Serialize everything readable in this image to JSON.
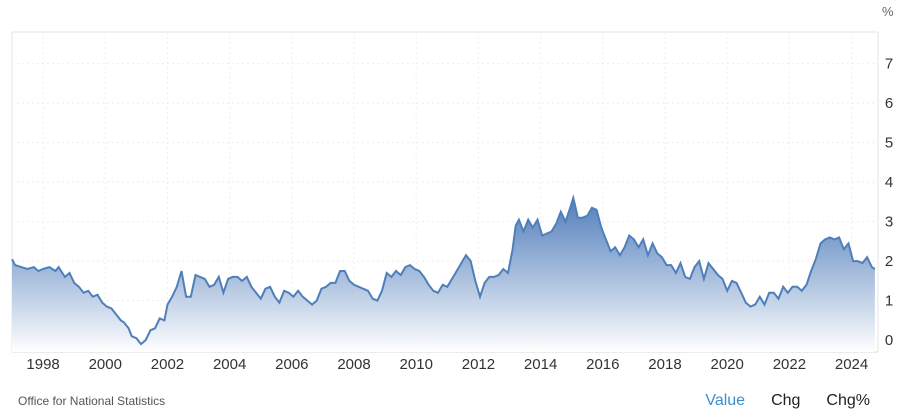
{
  "chart_data": {
    "type": "area",
    "unit": "%",
    "ylim": [
      -0.3,
      7.8
    ],
    "yticks": [
      0,
      1,
      2,
      3,
      4,
      5,
      6,
      7
    ],
    "xlim": [
      1997.0,
      2024.85
    ],
    "xticks": [
      1998,
      2000,
      2002,
      2004,
      2006,
      2008,
      2010,
      2012,
      2014,
      2016,
      2018,
      2020,
      2022,
      2024
    ],
    "grid": true,
    "legend": "none",
    "line_color": "#4f7fba",
    "fill_top_color": "#4a78b8",
    "fill_bottom_color": "#ffffff",
    "points": [
      [
        1997.0,
        2.05
      ],
      [
        1997.1,
        1.9
      ],
      [
        1997.3,
        1.85
      ],
      [
        1997.5,
        1.8
      ],
      [
        1997.7,
        1.85
      ],
      [
        1997.85,
        1.75
      ],
      [
        1998.0,
        1.8
      ],
      [
        1998.2,
        1.85
      ],
      [
        1998.4,
        1.75
      ],
      [
        1998.5,
        1.85
      ],
      [
        1998.7,
        1.6
      ],
      [
        1998.85,
        1.7
      ],
      [
        1999.0,
        1.45
      ],
      [
        1999.15,
        1.35
      ],
      [
        1999.3,
        1.2
      ],
      [
        1999.45,
        1.25
      ],
      [
        1999.6,
        1.1
      ],
      [
        1999.75,
        1.15
      ],
      [
        1999.9,
        0.95
      ],
      [
        2000.05,
        0.85
      ],
      [
        2000.2,
        0.8
      ],
      [
        2000.35,
        0.65
      ],
      [
        2000.5,
        0.5
      ],
      [
        2000.6,
        0.45
      ],
      [
        2000.75,
        0.3
      ],
      [
        2000.85,
        0.1
      ],
      [
        2001.0,
        0.05
      ],
      [
        2001.15,
        -0.1
      ],
      [
        2001.3,
        0.0
      ],
      [
        2001.45,
        0.25
      ],
      [
        2001.6,
        0.3
      ],
      [
        2001.75,
        0.55
      ],
      [
        2001.9,
        0.5
      ],
      [
        2002.0,
        0.9
      ],
      [
        2002.15,
        1.1
      ],
      [
        2002.3,
        1.35
      ],
      [
        2002.45,
        1.75
      ],
      [
        2002.6,
        1.1
      ],
      [
        2002.75,
        1.1
      ],
      [
        2002.9,
        1.65
      ],
      [
        2003.05,
        1.6
      ],
      [
        2003.2,
        1.55
      ],
      [
        2003.35,
        1.35
      ],
      [
        2003.5,
        1.4
      ],
      [
        2003.65,
        1.6
      ],
      [
        2003.8,
        1.2
      ],
      [
        2003.95,
        1.55
      ],
      [
        2004.1,
        1.6
      ],
      [
        2004.25,
        1.6
      ],
      [
        2004.4,
        1.5
      ],
      [
        2004.55,
        1.6
      ],
      [
        2004.7,
        1.35
      ],
      [
        2004.85,
        1.2
      ],
      [
        2005.0,
        1.05
      ],
      [
        2005.15,
        1.3
      ],
      [
        2005.3,
        1.35
      ],
      [
        2005.45,
        1.1
      ],
      [
        2005.6,
        0.95
      ],
      [
        2005.75,
        1.25
      ],
      [
        2005.9,
        1.2
      ],
      [
        2006.05,
        1.1
      ],
      [
        2006.2,
        1.25
      ],
      [
        2006.35,
        1.1
      ],
      [
        2006.5,
        1.0
      ],
      [
        2006.65,
        0.9
      ],
      [
        2006.8,
        1.0
      ],
      [
        2006.95,
        1.3
      ],
      [
        2007.1,
        1.35
      ],
      [
        2007.25,
        1.45
      ],
      [
        2007.4,
        1.45
      ],
      [
        2007.55,
        1.75
      ],
      [
        2007.7,
        1.75
      ],
      [
        2007.85,
        1.5
      ],
      [
        2008.0,
        1.4
      ],
      [
        2008.15,
        1.35
      ],
      [
        2008.3,
        1.3
      ],
      [
        2008.45,
        1.25
      ],
      [
        2008.6,
        1.05
      ],
      [
        2008.75,
        1.0
      ],
      [
        2008.9,
        1.25
      ],
      [
        2009.05,
        1.7
      ],
      [
        2009.2,
        1.6
      ],
      [
        2009.35,
        1.75
      ],
      [
        2009.5,
        1.65
      ],
      [
        2009.65,
        1.85
      ],
      [
        2009.8,
        1.9
      ],
      [
        2009.95,
        1.8
      ],
      [
        2010.1,
        1.75
      ],
      [
        2010.25,
        1.6
      ],
      [
        2010.4,
        1.4
      ],
      [
        2010.55,
        1.25
      ],
      [
        2010.7,
        1.2
      ],
      [
        2010.85,
        1.4
      ],
      [
        2011.0,
        1.35
      ],
      [
        2011.15,
        1.55
      ],
      [
        2011.3,
        1.75
      ],
      [
        2011.45,
        1.95
      ],
      [
        2011.6,
        2.15
      ],
      [
        2011.75,
        2.0
      ],
      [
        2011.9,
        1.5
      ],
      [
        2012.05,
        1.1
      ],
      [
        2012.2,
        1.45
      ],
      [
        2012.35,
        1.6
      ],
      [
        2012.5,
        1.6
      ],
      [
        2012.65,
        1.65
      ],
      [
        2012.8,
        1.8
      ],
      [
        2012.95,
        1.7
      ],
      [
        2013.1,
        2.3
      ],
      [
        2013.2,
        2.9
      ],
      [
        2013.3,
        3.05
      ],
      [
        2013.45,
        2.75
      ],
      [
        2013.6,
        3.05
      ],
      [
        2013.75,
        2.85
      ],
      [
        2013.9,
        3.05
      ],
      [
        2014.05,
        2.65
      ],
      [
        2014.2,
        2.7
      ],
      [
        2014.35,
        2.75
      ],
      [
        2014.5,
        2.95
      ],
      [
        2014.65,
        3.25
      ],
      [
        2014.8,
        3.0
      ],
      [
        2014.95,
        3.35
      ],
      [
        2015.05,
        3.6
      ],
      [
        2015.2,
        3.1
      ],
      [
        2015.35,
        3.1
      ],
      [
        2015.5,
        3.15
      ],
      [
        2015.65,
        3.35
      ],
      [
        2015.8,
        3.3
      ],
      [
        2015.95,
        2.85
      ],
      [
        2016.1,
        2.55
      ],
      [
        2016.25,
        2.25
      ],
      [
        2016.4,
        2.35
      ],
      [
        2016.55,
        2.15
      ],
      [
        2016.7,
        2.35
      ],
      [
        2016.85,
        2.65
      ],
      [
        2017.0,
        2.55
      ],
      [
        2017.15,
        2.35
      ],
      [
        2017.3,
        2.55
      ],
      [
        2017.45,
        2.15
      ],
      [
        2017.6,
        2.45
      ],
      [
        2017.75,
        2.2
      ],
      [
        2017.9,
        2.1
      ],
      [
        2018.05,
        1.9
      ],
      [
        2018.2,
        1.9
      ],
      [
        2018.35,
        1.7
      ],
      [
        2018.5,
        1.95
      ],
      [
        2018.65,
        1.6
      ],
      [
        2018.8,
        1.55
      ],
      [
        2018.95,
        1.85
      ],
      [
        2019.1,
        2.0
      ],
      [
        2019.25,
        1.55
      ],
      [
        2019.4,
        1.95
      ],
      [
        2019.55,
        1.8
      ],
      [
        2019.7,
        1.65
      ],
      [
        2019.85,
        1.55
      ],
      [
        2020.0,
        1.25
      ],
      [
        2020.15,
        1.5
      ],
      [
        2020.3,
        1.45
      ],
      [
        2020.45,
        1.2
      ],
      [
        2020.6,
        0.95
      ],
      [
        2020.75,
        0.85
      ],
      [
        2020.9,
        0.9
      ],
      [
        2021.05,
        1.1
      ],
      [
        2021.2,
        0.9
      ],
      [
        2021.35,
        1.2
      ],
      [
        2021.5,
        1.2
      ],
      [
        2021.65,
        1.05
      ],
      [
        2021.8,
        1.35
      ],
      [
        2021.95,
        1.2
      ],
      [
        2022.1,
        1.35
      ],
      [
        2022.25,
        1.35
      ],
      [
        2022.4,
        1.25
      ],
      [
        2022.55,
        1.4
      ],
      [
        2022.7,
        1.75
      ],
      [
        2022.85,
        2.05
      ],
      [
        2023.0,
        2.45
      ],
      [
        2023.15,
        2.55
      ],
      [
        2023.3,
        2.6
      ],
      [
        2023.45,
        2.55
      ],
      [
        2023.6,
        2.6
      ],
      [
        2023.75,
        2.3
      ],
      [
        2023.9,
        2.45
      ],
      [
        2024.05,
        2.0
      ],
      [
        2024.2,
        2.0
      ],
      [
        2024.35,
        1.95
      ],
      [
        2024.5,
        2.1
      ],
      [
        2024.65,
        1.85
      ],
      [
        2024.75,
        1.8
      ]
    ]
  },
  "footer": {
    "source": "Office for National Statistics",
    "tabs": [
      "Value",
      "Chg",
      "Chg%"
    ],
    "active_tab": "Value"
  }
}
